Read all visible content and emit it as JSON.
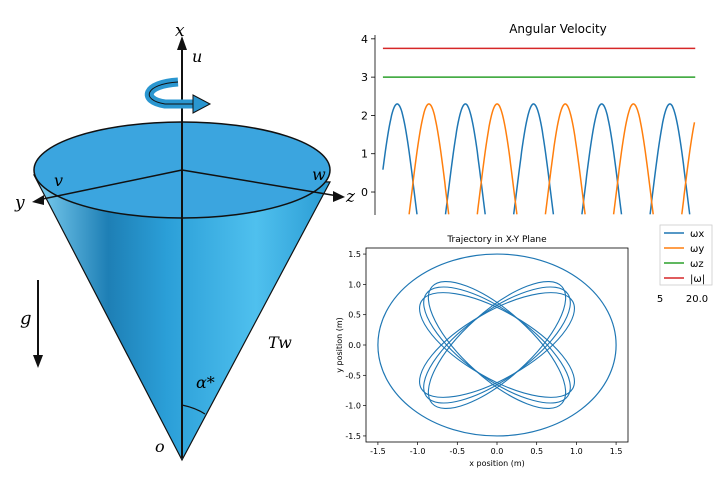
{
  "cone": {
    "labels": {
      "x": "x",
      "u": "u",
      "y": "y",
      "z": "z",
      "v": "v",
      "w": "w",
      "g": "g",
      "Tw": "Tw",
      "alpha": "α*",
      "o": "o"
    },
    "colors": {
      "surface": "#2aa7df",
      "top": "#3ba5df",
      "outline": "#111111"
    }
  },
  "chart_data": [
    {
      "type": "line",
      "title": "Angular Velocity",
      "xlim": [
        0,
        20.5
      ],
      "ylim": [
        -0.6,
        4.1
      ],
      "yticks": [
        0,
        1,
        2,
        3,
        4
      ],
      "xticks_visible": [
        "5",
        "20.0"
      ],
      "series": [
        {
          "name": "ωx",
          "color": "#1f77b4",
          "kind": "sine",
          "amplitude": 2.3,
          "offset": 0,
          "period": 4.3,
          "phase_peak_x": 1.4
        },
        {
          "name": "ωy",
          "color": "#ff7f0e",
          "kind": "sine",
          "amplitude": 2.3,
          "offset": 0,
          "period": 4.3,
          "phase_peak_x": 3.4
        },
        {
          "name": "ωz",
          "color": "#2ca02c",
          "kind": "constant",
          "value": 3.0
        },
        {
          "name": "|ω|",
          "color": "#d62728",
          "kind": "constant",
          "value": 3.75
        }
      ],
      "legend": "right"
    },
    {
      "type": "line",
      "title": "Trajectory in X-Y Plane",
      "xlabel": "x position (m)",
      "ylabel": "y position (m)",
      "xlim": [
        -1.65,
        1.65
      ],
      "ylim": [
        -1.6,
        1.6
      ],
      "xticks": [
        -1.5,
        -1.0,
        -0.5,
        0.0,
        0.5,
        1.0,
        1.5
      ],
      "yticks": [
        -1.5,
        -1.0,
        -0.5,
        0.0,
        0.5,
        1.0,
        1.5
      ],
      "series": [
        {
          "name": "",
          "color": "#1f77b4",
          "kind": "rosette",
          "outer_radius": 1.5,
          "inner_rx": 1.1,
          "inner_ry": 0.55,
          "lobes": 4
        }
      ]
    }
  ]
}
